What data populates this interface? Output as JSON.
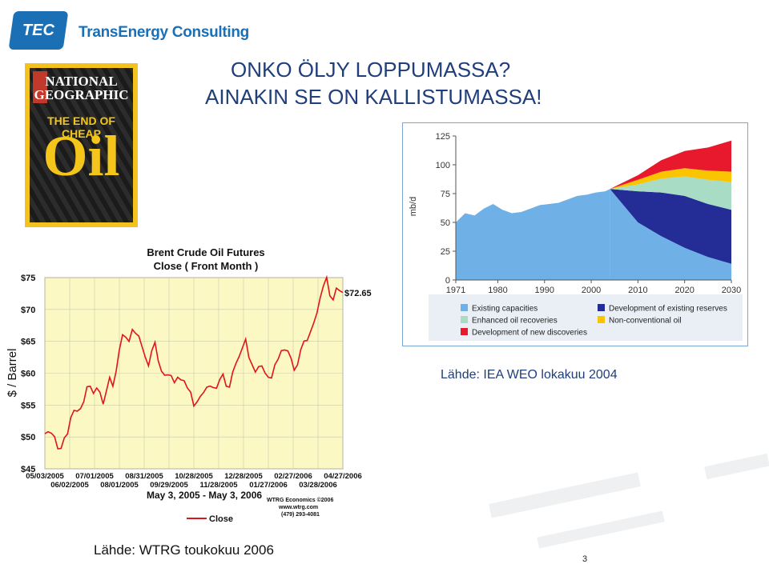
{
  "header": {
    "logo_text": "TEC",
    "company": "TransEnergy Consulting",
    "title_line1": "ONKO ÖLJY LOPPUMASSA?",
    "title_line2": "AINAKIN SE ON KALLISTUMASSA!"
  },
  "magazine": {
    "brand": "NATIONAL GEOGRAPHIC",
    "headline": "THE END OF CHEAP",
    "headline_big": "Oil",
    "frame_color": "#f3c21f"
  },
  "sources": {
    "iea": "Lähde: IEA WEO lokakuu 2004",
    "wtrg": "Lähde: WTRG toukokuu 2006"
  },
  "page_number": "3",
  "chart_data": [
    {
      "type": "line",
      "title": "Brent Crude Oil Futures",
      "subtitle": "Close ( Front Month )",
      "ylabel": "$ / Barrel",
      "xlabel": "May 3, 2005 - May 3, 2006",
      "ylim": [
        45,
        75
      ],
      "y_ticks": [
        "$75",
        "$70",
        "$65",
        "$60",
        "$55",
        "$50",
        "$45"
      ],
      "x_ticks_top": [
        "05/03/2005",
        "07/01/2005",
        "08/31/2005",
        "10/28/2005",
        "12/28/2005",
        "02/27/2006",
        "04/27/2006"
      ],
      "x_ticks_bottom": [
        "06/02/2005",
        "08/01/2005",
        "09/29/2005",
        "11/28/2005",
        "01/27/2006",
        "03/28/2006"
      ],
      "last_value_label": "$72.65",
      "legend": [
        "Close"
      ],
      "credit": [
        "WTRG Economics ©2006",
        "www.wtrg.com",
        "(479) 293-4081"
      ],
      "grid": true,
      "legend_position": "bottom",
      "background": "#fcf8c4",
      "line_color": "#e0141b",
      "series": [
        {
          "name": "Close",
          "values": [
            50.5,
            51,
            50.4,
            49.5,
            48.5,
            48.2,
            49.5,
            51,
            53.2,
            54,
            53.5,
            54.8,
            55.5,
            57.5,
            58.5,
            57,
            57.5,
            56.5,
            55.5,
            57.2,
            59,
            58.5,
            60.5,
            63.5,
            65.5,
            66,
            65,
            66.5,
            66.8,
            66,
            64,
            62,
            61.5,
            63.5,
            64.5,
            62.5,
            60.5,
            59.5,
            59.2,
            60,
            58.5,
            59,
            59.5,
            59,
            57.5,
            56.5,
            55.2,
            55.5,
            56,
            57.5,
            58,
            57.8,
            57.2,
            58,
            59,
            59.5,
            58.5,
            58,
            60,
            61,
            63,
            64,
            65,
            63,
            61.5,
            60,
            60.5,
            61.5,
            60,
            59,
            59.8,
            61.5,
            62,
            63,
            64,
            63.5,
            62,
            61,
            61.5,
            63.5,
            64.5,
            65.5,
            66.5,
            67.5,
            70,
            72,
            73.5,
            74.5,
            72.5,
            71.5,
            73,
            73.5,
            72.65
          ]
        }
      ]
    },
    {
      "type": "area",
      "ylabel": "mb/d",
      "ylim": [
        0,
        125
      ],
      "xlim": [
        1971,
        2030
      ],
      "y_ticks": [
        0,
        25,
        50,
        75,
        100,
        125
      ],
      "x_ticks": [
        1971,
        1980,
        1990,
        2000,
        2010,
        2020,
        2030
      ],
      "grid": false,
      "legend_position": "bottom",
      "legend": [
        {
          "name": "Existing capacities",
          "color": "#6fb0e6"
        },
        {
          "name": "Development of existing reserves",
          "color": "#242c96"
        },
        {
          "name": "Enhanced oil recoveries",
          "color": "#a8dcc4"
        },
        {
          "name": "Non-conventional oil",
          "color": "#fac400"
        },
        {
          "name": "Development of new discoveries",
          "color": "#e8192c"
        }
      ],
      "historical": {
        "x": [
          1971,
          1973,
          1975,
          1977,
          1979,
          1981,
          1983,
          1985,
          1987,
          1989,
          1991,
          1993,
          1995,
          1997,
          1999,
          2001,
          2003,
          2004
        ],
        "total": [
          50,
          58,
          56,
          62,
          66,
          61,
          58,
          59,
          62,
          65,
          66,
          67,
          70,
          73,
          74,
          76,
          77,
          79
        ]
      },
      "projection": {
        "x": [
          2004,
          2010,
          2015,
          2020,
          2025,
          2030
        ],
        "existing_capacities": [
          79,
          50,
          38,
          28,
          20,
          14
        ],
        "development_existing_reserves": [
          0,
          27,
          38,
          45,
          46,
          47
        ],
        "enhanced_oil_recoveries": [
          0,
          6,
          12,
          17,
          21,
          24
        ],
        "non_conventional_oil": [
          0,
          4,
          6,
          7,
          8,
          9
        ],
        "new_discoveries": [
          0,
          4,
          10,
          15,
          20,
          27
        ]
      }
    }
  ]
}
